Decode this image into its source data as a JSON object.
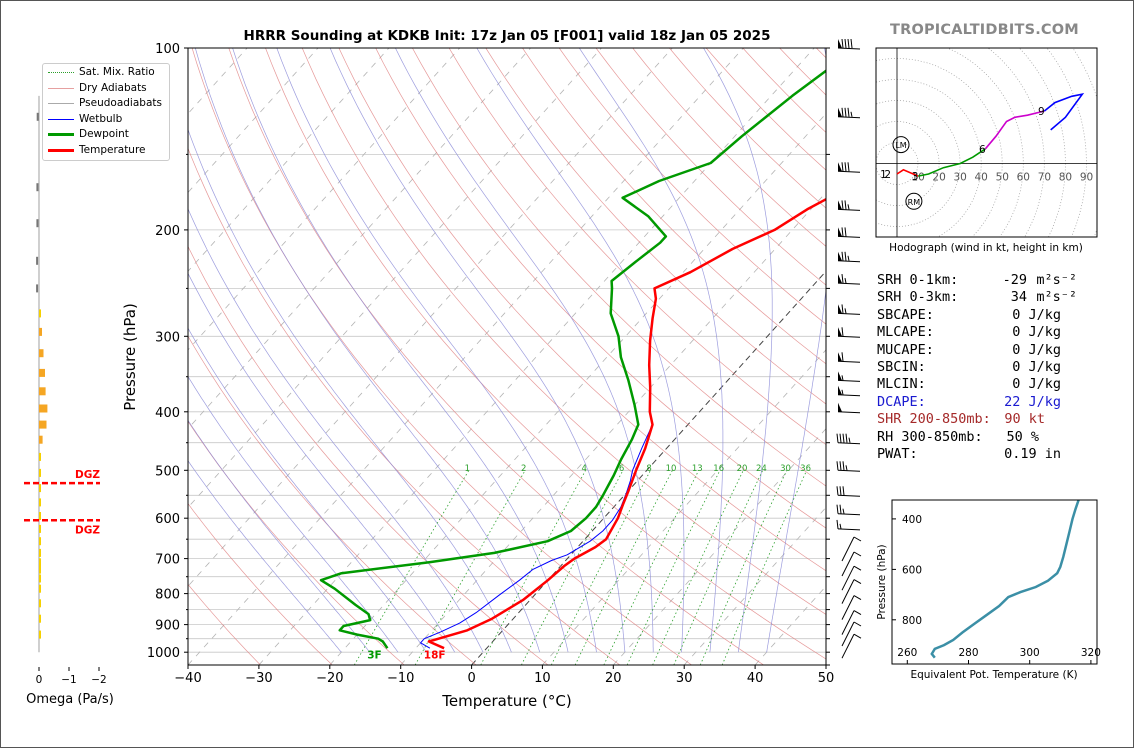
{
  "brand": "TROPICALTIDBITS.COM",
  "title": "HRRR Sounding at KDKB Init: 17z Jan 05 [F001] valid 18z Jan 05 2025",
  "xlabel": "Temperature (°C)",
  "ylabel": "Pressure (hPa)",
  "x_ticks": [
    "−40",
    "−30",
    "−20",
    "−10",
    "0",
    "10",
    "20",
    "30",
    "40",
    "50"
  ],
  "y_ticks": [
    "100",
    "200",
    "300",
    "400",
    "500",
    "600",
    "700",
    "800",
    "900",
    "1000"
  ],
  "legend": [
    {
      "label": "Sat. Mix. Ratio",
      "color": "#2ca02c",
      "style": "dotted"
    },
    {
      "label": "Dry Adiabats",
      "color": "#e08080",
      "style": "solid"
    },
    {
      "label": "Pseudoadiabats",
      "color": "#8c8cd8",
      "style": "solid"
    },
    {
      "label": "Wetbulb",
      "color": "#0000ff",
      "style": "solid"
    },
    {
      "label": "Dewpoint",
      "color": "#009900",
      "style": "solid"
    },
    {
      "label": "Temperature",
      "color": "#ff0000",
      "style": "solid"
    }
  ],
  "mixing_ratio_labels": [
    "1",
    "2",
    "4",
    "6",
    "8",
    "10",
    "13",
    "16",
    "20",
    "24",
    "30",
    "36"
  ],
  "surface_labels": {
    "dewpoint": "3F",
    "temperature": "18F"
  },
  "omega": {
    "xlabel": "Omega (Pa/s)",
    "ticks": [
      "0",
      "−1",
      "−2"
    ],
    "dgz_label": "DGZ",
    "dgz_bottom_hpa": 525,
    "dgz_top_hpa": 605
  },
  "hodograph": {
    "caption": "Hodograph (wind in kt, height in km)",
    "ring_labels": [
      "10",
      "20",
      "30",
      "40",
      "50",
      "60",
      "70",
      "80",
      "90"
    ],
    "height_labels": [
      "1",
      "2",
      "3",
      "6",
      "9"
    ],
    "lm_label": "LM",
    "rm_label": "RM"
  },
  "theta_e": {
    "xlabel": "Equivalent Pot. Temperature (K)",
    "ylabel": "Pressure (hPa)",
    "x_ticks": [
      "260",
      "280",
      "300",
      "320"
    ],
    "y_ticks": [
      "400",
      "600",
      "800"
    ]
  },
  "indices": [
    {
      "label": "SRH 0-1km:",
      "value": "-29",
      "unit": "m²s⁻²",
      "color": "#000000"
    },
    {
      "label": "SRH 0-3km:",
      "value": "34",
      "unit": "m²s⁻²",
      "color": "#000000"
    },
    {
      "label": "SBCAPE:",
      "value": "0 J/kg",
      "unit": "",
      "color": "#000000"
    },
    {
      "label": "MLCAPE:",
      "value": "0 J/kg",
      "unit": "",
      "color": "#000000"
    },
    {
      "label": "MUCAPE:",
      "value": "0 J/kg",
      "unit": "",
      "color": "#000000"
    },
    {
      "label": "SBCIN:",
      "value": "0 J/kg",
      "unit": "",
      "color": "#000000"
    },
    {
      "label": "MLCIN:",
      "value": "0 J/kg",
      "unit": "",
      "color": "#000000"
    },
    {
      "label": "DCAPE:",
      "value": "22 J/kg",
      "unit": "",
      "color": "#1a1ad0"
    },
    {
      "label": "SHR 200-850mb:",
      "value": "90 kt",
      "unit": "",
      "color": "#a52a2a"
    },
    {
      "label": "RH 300-850mb:",
      "value": "50 %",
      "unit": "",
      "color": "#000000"
    },
    {
      "label": "PWAT:",
      "value": "0.19 in",
      "unit": "",
      "color": "#000000"
    }
  ],
  "chart_data": [
    {
      "type": "line",
      "title": "HRRR Sounding at KDKB Init: 17z Jan 05 [F001] valid 18z Jan 05 2025",
      "xlabel": "Temperature (°C)",
      "ylabel": "Pressure (hPa)",
      "xlim": [
        -40,
        50
      ],
      "ylim": [
        1050,
        100
      ],
      "y_scale": "log",
      "series": [
        {
          "name": "Temperature",
          "color": "#ff0000",
          "points": [
            [
              -6,
              985
            ],
            [
              -9,
              960
            ],
            [
              -8,
              950
            ],
            [
              -5,
              920
            ],
            [
              -3,
              880
            ],
            [
              -1,
              820
            ],
            [
              0,
              760
            ],
            [
              0.5,
              720
            ],
            [
              1,
              700
            ],
            [
              2.5,
              670
            ],
            [
              3,
              650
            ],
            [
              2,
              600
            ],
            [
              1,
              570
            ],
            [
              0,
              540
            ],
            [
              -1.5,
              500
            ],
            [
              -3,
              460
            ],
            [
              -5,
              420
            ],
            [
              -7,
              400
            ],
            [
              -10,
              365
            ],
            [
              -13,
              335
            ],
            [
              -16,
              305
            ],
            [
              -18.5,
              280
            ],
            [
              -20.5,
              260
            ],
            [
              -22,
              250
            ],
            [
              -19,
              235
            ],
            [
              -16,
              215
            ],
            [
              -12.5,
              200
            ],
            [
              -10.5,
              185
            ],
            [
              -7.5,
              170
            ],
            [
              -6.5,
              155
            ],
            [
              -5,
              143
            ],
            [
              -2,
              125
            ],
            [
              1,
              110
            ],
            [
              4,
              100
            ]
          ]
        },
        {
          "name": "Dewpoint",
          "color": "#009900",
          "points": [
            [
              -14,
              985
            ],
            [
              -15.5,
              960
            ],
            [
              -16.5,
              950
            ],
            [
              -20,
              935
            ],
            [
              -23,
              920
            ],
            [
              -23,
              905
            ],
            [
              -20,
              885
            ],
            [
              -21,
              865
            ],
            [
              -24,
              835
            ],
            [
              -29,
              785
            ],
            [
              -32,
              760
            ],
            [
              -30,
              740
            ],
            [
              -19,
              710
            ],
            [
              -11,
              685
            ],
            [
              -5,
              655
            ],
            [
              -3,
              630
            ],
            [
              -2.5,
              600
            ],
            [
              -2.5,
              575
            ],
            [
              -3,
              550
            ],
            [
              -3.5,
              530
            ],
            [
              -4,
              510
            ],
            [
              -5,
              480
            ],
            [
              -6,
              445
            ],
            [
              -7,
              420
            ],
            [
              -10,
              390
            ],
            [
              -14,
              355
            ],
            [
              -18,
              325
            ],
            [
              -21,
              300
            ],
            [
              -25,
              275
            ],
            [
              -28,
              250
            ],
            [
              -29,
              243
            ],
            [
              -28,
              225
            ],
            [
              -27,
              210
            ],
            [
              -27,
              205
            ],
            [
              -32,
              190
            ],
            [
              -38,
              177
            ],
            [
              -35,
              166
            ],
            [
              -30,
              155
            ],
            [
              -29,
              140
            ],
            [
              -27,
              120
            ],
            [
              -24,
              100
            ]
          ]
        },
        {
          "name": "Wetbulb",
          "color": "#0000ff",
          "points": [
            [
              -8,
              985
            ],
            [
              -10,
              965
            ],
            [
              -10,
              950
            ],
            [
              -8.5,
              925
            ],
            [
              -7,
              895
            ],
            [
              -6,
              860
            ],
            [
              -5,
              805
            ],
            [
              -4,
              760
            ],
            [
              -3.5,
              730
            ],
            [
              -2,
              705
            ],
            [
              -0.5,
              690
            ],
            [
              1,
              655
            ],
            [
              1.5,
              630
            ],
            [
              1.5,
              605
            ],
            [
              1,
              575
            ],
            [
              0,
              545
            ],
            [
              -1,
              520
            ],
            [
              -2,
              500
            ],
            [
              -3.5,
              460
            ],
            [
              -5,
              420
            ],
            [
              -7,
              400
            ],
            [
              -10,
              365
            ],
            [
              -13,
              335
            ],
            [
              -16,
              305
            ],
            [
              -18.5,
              280
            ],
            [
              -20.5,
              260
            ],
            [
              -22,
              250
            ],
            [
              -19,
              235
            ],
            [
              -16,
              215
            ],
            [
              -12.5,
              200
            ],
            [
              -10.5,
              185
            ],
            [
              -7.5,
              170
            ],
            [
              -6.5,
              155
            ],
            [
              -5,
              143
            ],
            [
              -2,
              125
            ],
            [
              1,
              110
            ],
            [
              4,
              100
            ]
          ]
        }
      ]
    },
    {
      "type": "bar",
      "title": "",
      "xlabel": "Omega (Pa/s)",
      "xlim": [
        0.3,
        -2.2
      ],
      "series": [
        {
          "name": "",
          "points": [
            [
              0.01,
              130
            ],
            [
              0.02,
              170
            ],
            [
              0.02,
              195
            ],
            [
              0.03,
              225
            ],
            [
              0.03,
              250
            ],
            [
              -0.05,
              275
            ],
            [
              -0.1,
              295
            ],
            [
              -0.15,
              320
            ],
            [
              -0.2,
              345
            ],
            [
              -0.22,
              370
            ],
            [
              -0.28,
              395
            ],
            [
              -0.25,
              420
            ],
            [
              -0.12,
              445
            ],
            [
              -0.05,
              475
            ],
            [
              -0.03,
              505
            ],
            [
              -0.05,
              535
            ],
            [
              -0.03,
              565
            ],
            [
              -0.03,
              595
            ],
            [
              -0.02,
              625
            ],
            [
              -0.02,
              655
            ],
            [
              -0.02,
              685
            ],
            [
              -0.03,
              710
            ],
            [
              -0.04,
              730
            ],
            [
              -0.04,
              755
            ],
            [
              -0.03,
              785
            ],
            [
              -0.01,
              830
            ],
            [
              -0.01,
              880
            ],
            [
              -0.01,
              935
            ]
          ]
        }
      ]
    },
    {
      "type": "line",
      "title": "Hodograph (wind in kt, height in km)",
      "xlim": [
        -10,
        95
      ],
      "ylim": [
        -35,
        55
      ],
      "series": [
        {
          "name": "0-1 km",
          "color": "#ff0000",
          "points": [
            [
              0,
              -5
            ],
            [
              3,
              -3
            ],
            [
              10,
              -6
            ]
          ]
        },
        {
          "name": "1-3 km",
          "color": "#009900",
          "points": [
            [
              10,
              -6
            ],
            [
              15,
              -5
            ],
            [
              22,
              -2
            ],
            [
              30,
              0
            ],
            [
              36,
              3
            ],
            [
              42,
              7
            ]
          ]
        },
        {
          "name": "3-9 km",
          "color": "#cc00cc",
          "points": [
            [
              42,
              7
            ],
            [
              47,
              13
            ],
            [
              52,
              20
            ],
            [
              56,
              22
            ],
            [
              62,
              23
            ],
            [
              70,
              25
            ]
          ]
        },
        {
          "name": "9+ km",
          "color": "#0000ff",
          "points": [
            [
              70,
              25
            ],
            [
              75,
              29
            ],
            [
              83,
              32
            ],
            [
              88,
              33
            ],
            [
              80,
              22
            ],
            [
              73,
              16
            ]
          ]
        }
      ],
      "storm_motion": {
        "LM": [
          0,
          9
        ],
        "RM": [
          8,
          -18
        ]
      }
    },
    {
      "type": "line",
      "title": "",
      "xlabel": "Equivalent Pot. Temperature (K)",
      "ylabel": "Pressure (hPa)",
      "xlim": [
        255,
        322
      ],
      "ylim": [
        975,
        325
      ],
      "series": [
        {
          "name": "",
          "color": "#3b8fa6",
          "points": [
            [
              269,
              950
            ],
            [
              268,
              935
            ],
            [
              269,
              915
            ],
            [
              272,
              900
            ],
            [
              275,
              880
            ],
            [
              278,
              850
            ],
            [
              282,
              815
            ],
            [
              286,
              780
            ],
            [
              290,
              745
            ],
            [
              293,
              710
            ],
            [
              297,
              690
            ],
            [
              302,
              670
            ],
            [
              306,
              645
            ],
            [
              309,
              615
            ],
            [
              310,
              590
            ],
            [
              311,
              550
            ],
            [
              312,
              500
            ],
            [
              313,
              450
            ],
            [
              314,
              400
            ],
            [
              315,
              360
            ],
            [
              316,
              325
            ]
          ]
        }
      ]
    }
  ]
}
